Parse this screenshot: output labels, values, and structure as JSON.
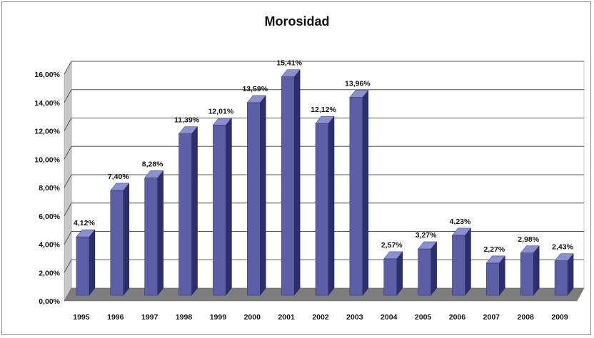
{
  "chart_data": {
    "type": "bar",
    "title": "Morosidad",
    "xlabel": "",
    "ylabel": "",
    "categories": [
      "1995",
      "1996",
      "1997",
      "1998",
      "1999",
      "2000",
      "2001",
      "2002",
      "2003",
      "2004",
      "2005",
      "2006",
      "2007",
      "2008",
      "2009"
    ],
    "values": [
      4.12,
      7.4,
      8.28,
      11.39,
      12.01,
      13.59,
      15.41,
      12.12,
      13.96,
      2.57,
      3.27,
      4.23,
      2.27,
      2.98,
      2.43
    ],
    "data_labels": [
      "4,12%",
      "7,40%",
      "8,28%",
      "11,39%",
      "12,01%",
      "13,59%",
      "15,41%",
      "12,12%",
      "13,96%",
      "2,57%",
      "3,27%",
      "4,23%",
      "2,27%",
      "2,98%",
      "2,43%"
    ],
    "ylim": [
      0,
      16
    ],
    "y_ticks": [
      {
        "value": 0,
        "label": "0,00%"
      },
      {
        "value": 2,
        "label": "2,00%"
      },
      {
        "value": 4,
        "label": "4,00%"
      },
      {
        "value": 6,
        "label": "6,00%"
      },
      {
        "value": 8,
        "label": "8,00%"
      },
      {
        "value": 10,
        "label": "10,00%"
      },
      {
        "value": 12,
        "label": "12,00%"
      },
      {
        "value": 14,
        "label": "14,00%"
      },
      {
        "value": 16,
        "label": "16,00%"
      }
    ],
    "grid": true,
    "legend": "none",
    "style": "3d-columns",
    "colors": {
      "bar_front": "#5a5fa6",
      "bar_side": "#2b2f6e",
      "bar_top": "#8a8fd0",
      "floor": "#7d7d7d",
      "wall": "#ffffff",
      "gridline": "#555555"
    }
  }
}
